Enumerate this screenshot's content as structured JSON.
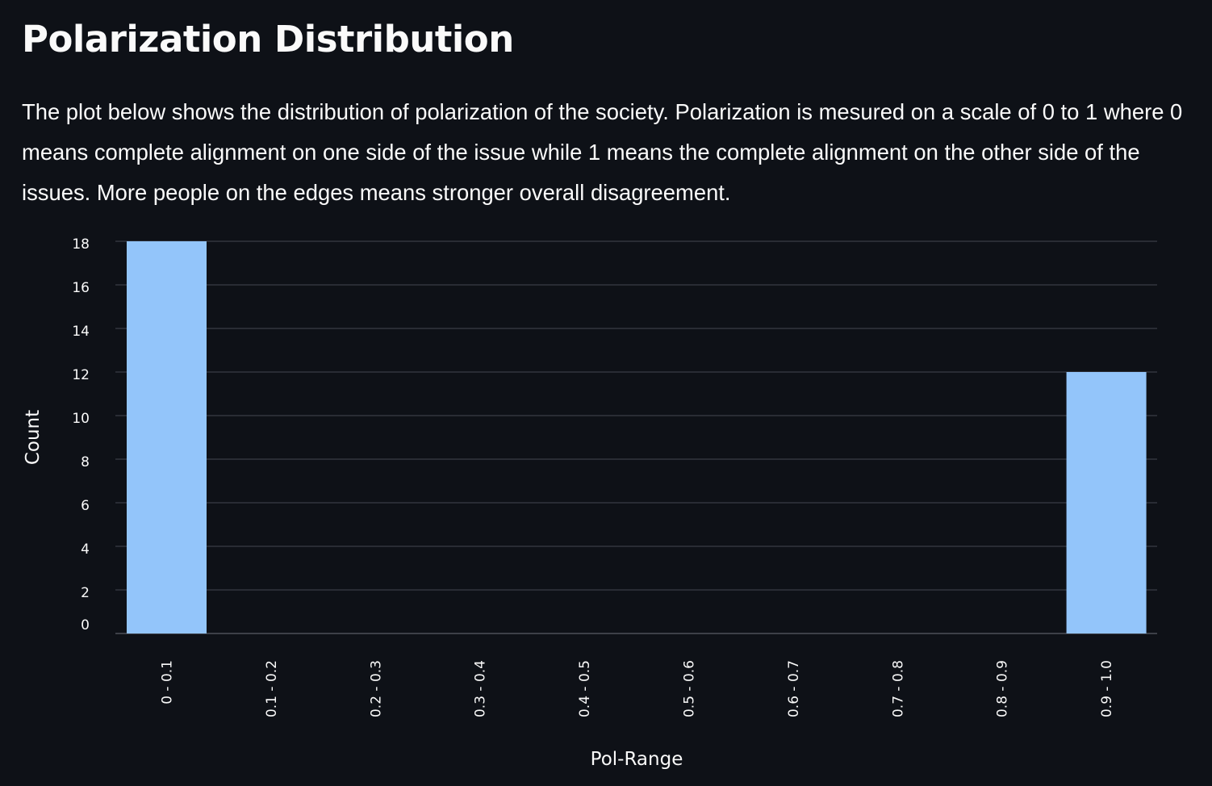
{
  "page": {
    "title": "Polarization Distribution",
    "description": "The plot below shows the distribution of polarization of the society. Polarization is mesured on a scale of 0 to 1 where 0 means complete alignment on one side of the issue while 1 means the complete alignment on the other side of the issues. More people on the edges means stronger overall disagreement."
  },
  "colors": {
    "background": "#0e1117",
    "bar": "#93c5fa",
    "grid": "#3a3d45",
    "text": "#fafafa"
  },
  "chart_data": {
    "type": "bar",
    "categories": [
      "0 - 0.1",
      "0.1 - 0.2",
      "0.2 - 0.3",
      "0.3 - 0.4",
      "0.4 - 0.5",
      "0.5 - 0.6",
      "0.6 - 0.7",
      "0.7 - 0.8",
      "0.8 - 0.9",
      "0.9 - 1.0"
    ],
    "values": [
      18,
      0,
      0,
      0,
      0,
      0,
      0,
      0,
      0,
      12
    ],
    "xlabel": "Pol-Range",
    "ylabel": "Count",
    "ylim": [
      0,
      18
    ],
    "yticks": [
      0,
      2,
      4,
      6,
      8,
      10,
      12,
      14,
      16,
      18
    ],
    "grid": true,
    "legend": "none",
    "x_tick_rotation": "vertical"
  }
}
